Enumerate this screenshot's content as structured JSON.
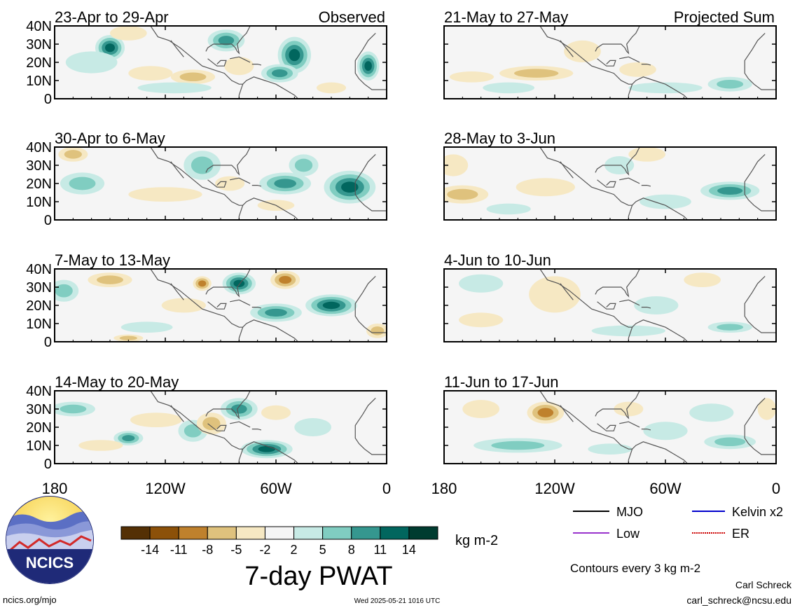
{
  "chart_data": {
    "type": "heatmap",
    "title": "7-day PWAT",
    "units": "kg m-2",
    "colorbar": {
      "ticks": [
        "-14",
        "-11",
        "-8",
        "-5",
        "-2",
        "2",
        "5",
        "8",
        "11",
        "14"
      ],
      "colors": [
        "#543005",
        "#8c5109",
        "#bf812d",
        "#dfc27d",
        "#f6e8c3",
        "#f5f5f5",
        "#c7eae5",
        "#80cdc1",
        "#35978f",
        "#01665e",
        "#003c30"
      ]
    },
    "x_ticks": [
      "180",
      "120W",
      "60W",
      "0"
    ],
    "y_ticks": [
      "40N",
      "30N",
      "20N",
      "10N",
      "0"
    ],
    "xlim": [
      -180,
      0
    ],
    "ylim": [
      0,
      40
    ],
    "panels": [
      {
        "id": "obs1",
        "label": "23-Apr to 29-Apr",
        "tag": "Observed",
        "group": "Observed",
        "blobs": [
          {
            "lon": -150,
            "lat": 28,
            "v": 12,
            "rx": 8,
            "ry": 7
          },
          {
            "lon": -160,
            "lat": 20,
            "v": 4,
            "rx": 14,
            "ry": 6
          },
          {
            "lon": -87,
            "lat": 32,
            "v": 10,
            "rx": 10,
            "ry": 6
          },
          {
            "lon": -50,
            "lat": 24,
            "v": 13,
            "rx": 9,
            "ry": 10
          },
          {
            "lon": -58,
            "lat": 14,
            "v": 8,
            "rx": 10,
            "ry": 5
          },
          {
            "lon": -10,
            "lat": 18,
            "v": 12,
            "rx": 6,
            "ry": 8
          },
          {
            "lon": -105,
            "lat": 12,
            "v": -5,
            "rx": 12,
            "ry": 4
          },
          {
            "lon": -128,
            "lat": 14,
            "v": -4,
            "rx": 12,
            "ry": 4
          },
          {
            "lon": -140,
            "lat": 36,
            "v": -3,
            "rx": 10,
            "ry": 4
          },
          {
            "lon": -80,
            "lat": 18,
            "v": -4,
            "rx": 8,
            "ry": 5
          },
          {
            "lon": -115,
            "lat": 6,
            "v": 3,
            "rx": 20,
            "ry": 3
          },
          {
            "lon": -30,
            "lat": 6,
            "v": -3,
            "rx": 8,
            "ry": 3
          }
        ]
      },
      {
        "id": "obs2",
        "label": "30-Apr to 6-May",
        "tag": "",
        "group": "Observed",
        "blobs": [
          {
            "lon": -20,
            "lat": 18,
            "v": 13,
            "rx": 14,
            "ry": 9
          },
          {
            "lon": -55,
            "lat": 20,
            "v": 10,
            "rx": 14,
            "ry": 6
          },
          {
            "lon": -45,
            "lat": 30,
            "v": 6,
            "rx": 8,
            "ry": 6
          },
          {
            "lon": -165,
            "lat": 20,
            "v": 5,
            "rx": 12,
            "ry": 6
          },
          {
            "lon": -100,
            "lat": 30,
            "v": 5,
            "rx": 10,
            "ry": 8
          },
          {
            "lon": -170,
            "lat": 36,
            "v": -6,
            "rx": 8,
            "ry": 4
          },
          {
            "lon": -120,
            "lat": 14,
            "v": -3,
            "rx": 20,
            "ry": 4
          },
          {
            "lon": -85,
            "lat": 20,
            "v": -4,
            "rx": 8,
            "ry": 4
          },
          {
            "lon": -60,
            "lat": 8,
            "v": -3,
            "rx": 10,
            "ry": 3
          }
        ]
      },
      {
        "id": "obs3",
        "label": "7-May to 13-May",
        "tag": "",
        "group": "Observed",
        "blobs": [
          {
            "lon": -80,
            "lat": 32,
            "v": 12,
            "rx": 9,
            "ry": 6
          },
          {
            "lon": -30,
            "lat": 20,
            "v": 12,
            "rx": 14,
            "ry": 6
          },
          {
            "lon": -60,
            "lat": 16,
            "v": 8,
            "rx": 14,
            "ry": 5
          },
          {
            "lon": -175,
            "lat": 28,
            "v": 5,
            "rx": 8,
            "ry": 6
          },
          {
            "lon": -130,
            "lat": 8,
            "v": 4,
            "rx": 14,
            "ry": 3
          },
          {
            "lon": -55,
            "lat": 34,
            "v": -9,
            "rx": 8,
            "ry": 5
          },
          {
            "lon": -150,
            "lat": 34,
            "v": -5,
            "rx": 12,
            "ry": 4
          },
          {
            "lon": -140,
            "lat": 2,
            "v": -7,
            "rx": 8,
            "ry": 2
          },
          {
            "lon": -100,
            "lat": 32,
            "v": -8,
            "rx": 5,
            "ry": 4
          },
          {
            "lon": -5,
            "lat": 6,
            "v": -5,
            "rx": 6,
            "ry": 4
          },
          {
            "lon": -110,
            "lat": 20,
            "v": -3,
            "rx": 12,
            "ry": 4
          }
        ]
      },
      {
        "id": "obs4",
        "label": "14-May to 20-May",
        "tag": "",
        "group": "Observed",
        "blobs": [
          {
            "lon": -65,
            "lat": 8,
            "v": 12,
            "rx": 14,
            "ry": 5
          },
          {
            "lon": -170,
            "lat": 30,
            "v": 6,
            "rx": 12,
            "ry": 4
          },
          {
            "lon": -140,
            "lat": 14,
            "v": 9,
            "rx": 8,
            "ry": 4
          },
          {
            "lon": -80,
            "lat": 30,
            "v": 8,
            "rx": 10,
            "ry": 6
          },
          {
            "lon": -105,
            "lat": 18,
            "v": 6,
            "rx": 8,
            "ry": 6
          },
          {
            "lon": -95,
            "lat": 22,
            "v": -7,
            "rx": 8,
            "ry": 6
          },
          {
            "lon": -125,
            "lat": 24,
            "v": -4,
            "rx": 14,
            "ry": 4
          },
          {
            "lon": -155,
            "lat": 10,
            "v": -3,
            "rx": 12,
            "ry": 3
          },
          {
            "lon": -40,
            "lat": 20,
            "v": 4,
            "rx": 10,
            "ry": 5
          },
          {
            "lon": -60,
            "lat": 28,
            "v": -3,
            "rx": 8,
            "ry": 4
          }
        ]
      },
      {
        "id": "prj1",
        "label": "21-May to 27-May",
        "tag": "Projected Sum",
        "group": "Projected",
        "blobs": [
          {
            "lon": -130,
            "lat": 14,
            "v": -5,
            "rx": 20,
            "ry": 4
          },
          {
            "lon": -165,
            "lat": 12,
            "v": -3,
            "rx": 12,
            "ry": 3
          },
          {
            "lon": -105,
            "lat": 26,
            "v": -3,
            "rx": 10,
            "ry": 6
          },
          {
            "lon": -60,
            "lat": 6,
            "v": 4,
            "rx": 20,
            "ry": 3
          },
          {
            "lon": -25,
            "lat": 8,
            "v": 5,
            "rx": 12,
            "ry": 4
          },
          {
            "lon": -145,
            "lat": 6,
            "v": 3,
            "rx": 14,
            "ry": 3
          },
          {
            "lon": -75,
            "lat": 16,
            "v": -2.5,
            "rx": 10,
            "ry": 4
          }
        ]
      },
      {
        "id": "prj2",
        "label": "28-May to 3-Jun",
        "tag": "",
        "group": "Projected",
        "blobs": [
          {
            "lon": -170,
            "lat": 14,
            "v": -5,
            "rx": 14,
            "ry": 5
          },
          {
            "lon": -125,
            "lat": 18,
            "v": -4,
            "rx": 16,
            "ry": 5
          },
          {
            "lon": -175,
            "lat": 30,
            "v": -3,
            "rx": 8,
            "ry": 6
          },
          {
            "lon": -25,
            "lat": 16,
            "v": 8,
            "rx": 16,
            "ry": 5
          },
          {
            "lon": -60,
            "lat": 10,
            "v": 4,
            "rx": 14,
            "ry": 4
          },
          {
            "lon": -145,
            "lat": 6,
            "v": 3,
            "rx": 12,
            "ry": 3
          },
          {
            "lon": -70,
            "lat": 36,
            "v": -3,
            "rx": 10,
            "ry": 4
          },
          {
            "lon": -85,
            "lat": 30,
            "v": 3,
            "rx": 8,
            "ry": 5
          }
        ]
      },
      {
        "id": "prj3",
        "label": "4-Jun to 10-Jun",
        "tag": "",
        "group": "Projected",
        "blobs": [
          {
            "lon": -120,
            "lat": 26,
            "v": -3,
            "rx": 14,
            "ry": 10
          },
          {
            "lon": -80,
            "lat": 6,
            "v": 4,
            "rx": 20,
            "ry": 3
          },
          {
            "lon": -25,
            "lat": 8,
            "v": 5,
            "rx": 12,
            "ry": 3
          },
          {
            "lon": -160,
            "lat": 32,
            "v": 3,
            "rx": 12,
            "ry": 5
          },
          {
            "lon": -65,
            "lat": 20,
            "v": 3,
            "rx": 12,
            "ry": 5
          },
          {
            "lon": -40,
            "lat": 34,
            "v": -2.5,
            "rx": 10,
            "ry": 4
          },
          {
            "lon": -160,
            "lat": 12,
            "v": -2.5,
            "rx": 12,
            "ry": 4
          }
        ]
      },
      {
        "id": "prj4",
        "label": "11-Jun to 17-Jun",
        "tag": "",
        "group": "Projected",
        "blobs": [
          {
            "lon": -125,
            "lat": 28,
            "v": -8,
            "rx": 10,
            "ry": 6
          },
          {
            "lon": -160,
            "lat": 30,
            "v": -4,
            "rx": 10,
            "ry": 5
          },
          {
            "lon": -140,
            "lat": 10,
            "v": 6,
            "rx": 24,
            "ry": 4
          },
          {
            "lon": -25,
            "lat": 12,
            "v": 6,
            "rx": 14,
            "ry": 4
          },
          {
            "lon": -60,
            "lat": 18,
            "v": 4,
            "rx": 12,
            "ry": 5
          },
          {
            "lon": -90,
            "lat": 8,
            "v": 4,
            "rx": 12,
            "ry": 3
          },
          {
            "lon": -35,
            "lat": 28,
            "v": 3,
            "rx": 12,
            "ry": 5
          },
          {
            "lon": -5,
            "lat": 30,
            "v": -3,
            "rx": 5,
            "ry": 6
          },
          {
            "lon": -80,
            "lat": 30,
            "v": -3,
            "rx": 8,
            "ry": 4
          }
        ]
      }
    ],
    "legend_lines": [
      {
        "name": "MJO",
        "color": "#000000"
      },
      {
        "name": "Kelvin x2",
        "color": "#0000cc"
      },
      {
        "name": "Low",
        "color": "#9933cc"
      },
      {
        "name": "ER",
        "color": "#cc0000"
      }
    ],
    "contours_note": "Contours every 3 kg m-2"
  },
  "footer": {
    "logo_text": "NCICS",
    "url": "ncics.org/mjo",
    "timestamp": "Wed 2025-05-21 1016 UTC",
    "author": "Carl Schreck",
    "email": "carl_schreck@ncsu.edu"
  }
}
